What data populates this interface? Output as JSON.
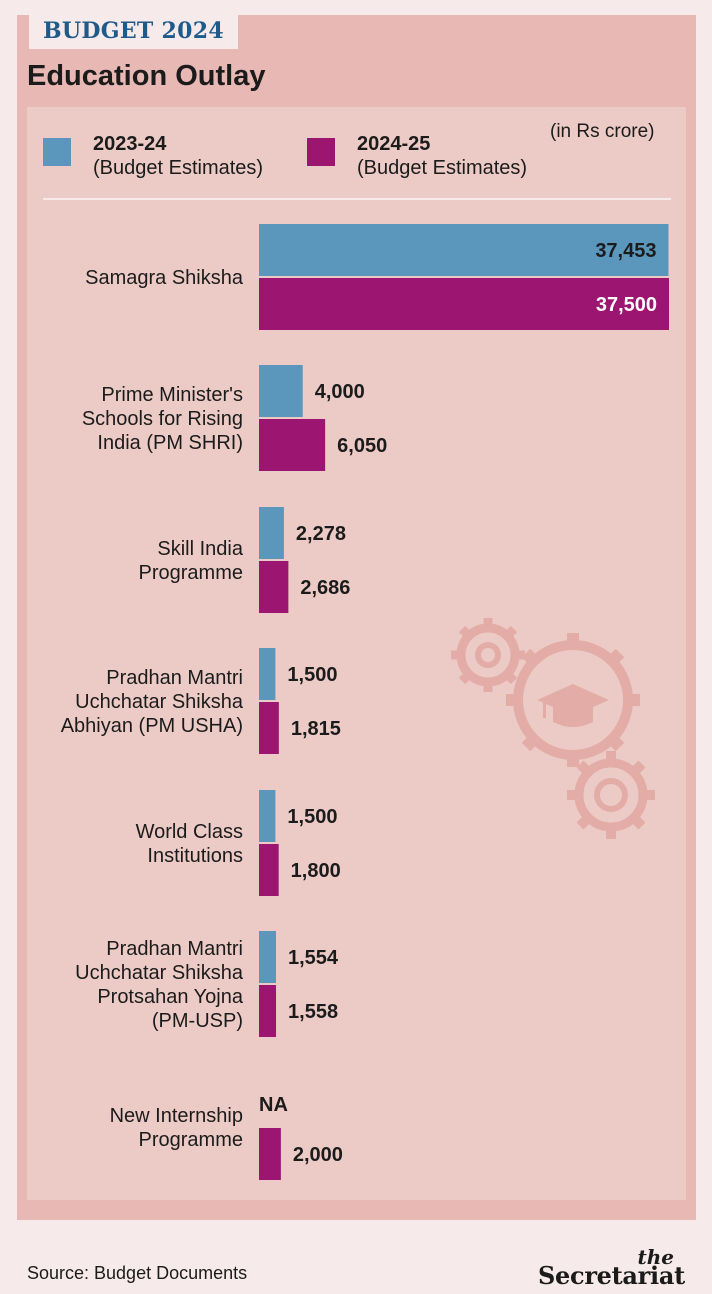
{
  "header": {
    "tag": "BUDGET 2024",
    "title": "Education Outlay"
  },
  "legend": {
    "unit_note": "(in Rs crore)",
    "items": [
      {
        "year": "2023-24",
        "sub": "(Budget Estimates)",
        "color": "#5b97bd"
      },
      {
        "year": "2024-25",
        "sub": "(Budget Estimates)",
        "color": "#9b1571"
      }
    ]
  },
  "chart_data": {
    "type": "bar",
    "orientation": "horizontal",
    "title": "Education Outlay",
    "unit": "Rs crore",
    "categories": [
      [
        "Samagra Shiksha"
      ],
      [
        "Prime Minister's",
        "Schools for Rising",
        "India (PM SHRI)"
      ],
      [
        "Skill India",
        "Programme"
      ],
      [
        "Pradhan Mantri",
        "Uchchatar Shiksha",
        "Abhiyan (PM USHA)"
      ],
      [
        "World Class",
        "Institutions"
      ],
      [
        "Pradhan Mantri",
        "Uchchatar Shiksha",
        "Protsahan Yojna",
        "(PM-USP)"
      ],
      [
        "New Internship",
        "Programme"
      ]
    ],
    "series": [
      {
        "name": "2023-24 (Budget Estimates)",
        "color": "#5b97bd",
        "values": [
          37453,
          4000,
          2278,
          1500,
          1500,
          1554,
          null
        ],
        "labels": [
          "37,453",
          "4,000",
          "2,278",
          "1,500",
          "1,500",
          "1,554",
          "NA"
        ]
      },
      {
        "name": "2024-25 (Budget Estimates)",
        "color": "#9b1571",
        "values": [
          37500,
          6050,
          2686,
          1815,
          1800,
          1558,
          2000
        ],
        "labels": [
          "37,500",
          "6,050",
          "2,686",
          "1,815",
          "1,800",
          "1,558",
          "2,000"
        ]
      }
    ],
    "xlim": [
      0,
      37500
    ],
    "grid": false,
    "legend_position": "top"
  },
  "footer": {
    "source": "Source: Budget Documents",
    "brand_the": "the",
    "brand_name": "Secretariat"
  }
}
